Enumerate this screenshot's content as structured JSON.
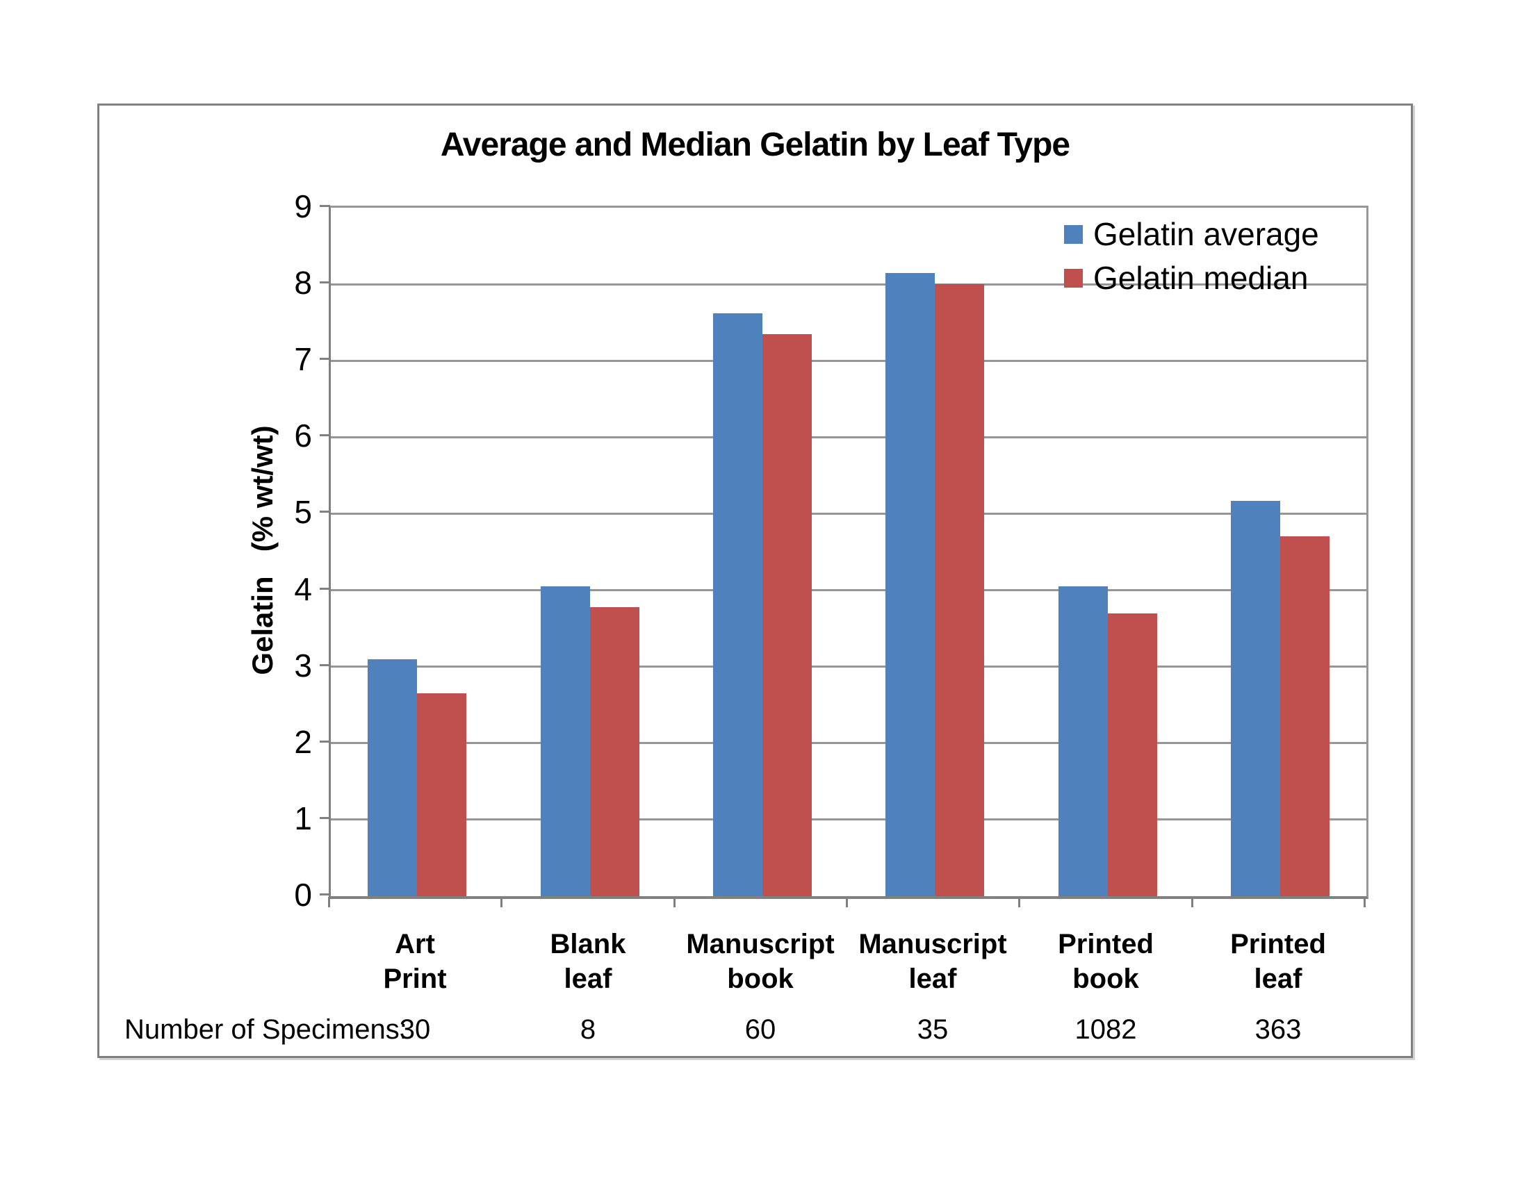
{
  "chart_data": {
    "type": "bar",
    "title": "Average and Median Gelatin by Leaf Type",
    "ylabel": "Gelatin   (% wt/wt)",
    "xlabel": "",
    "ylim": [
      0,
      9
    ],
    "ytick_step": 1,
    "grid": true,
    "legend_position": "top-right-inside",
    "categories": [
      "Art Print",
      "Blank leaf",
      "Manuscript book",
      "Manuscript leaf",
      "Printed book",
      "Printed leaf"
    ],
    "category_label_lines": [
      [
        "Art",
        "Print"
      ],
      [
        "Blank",
        "leaf"
      ],
      [
        "Manuscript",
        "book"
      ],
      [
        "Manuscript",
        "leaf"
      ],
      [
        "Printed",
        "book"
      ],
      [
        "Printed",
        "leaf"
      ]
    ],
    "series": [
      {
        "name": "Gelatin average",
        "color": "#4F81BD",
        "values": [
          3.1,
          4.05,
          7.62,
          8.15,
          4.05,
          5.17
        ]
      },
      {
        "name": "Gelatin median",
        "color": "#C0504D",
        "values": [
          2.65,
          3.78,
          7.35,
          8.0,
          3.7,
          4.7
        ]
      }
    ],
    "footer": {
      "label": "Number of Specimens:",
      "values": [
        "30",
        "8",
        "60",
        "35",
        "1082",
        "363"
      ]
    }
  },
  "colors": {
    "series_average": "#4F81BD",
    "series_median": "#C0504D",
    "gridline": "#969696",
    "axis": "#808080",
    "frame_border": "#808080",
    "text": "#000000",
    "background": "#FFFFFF"
  }
}
